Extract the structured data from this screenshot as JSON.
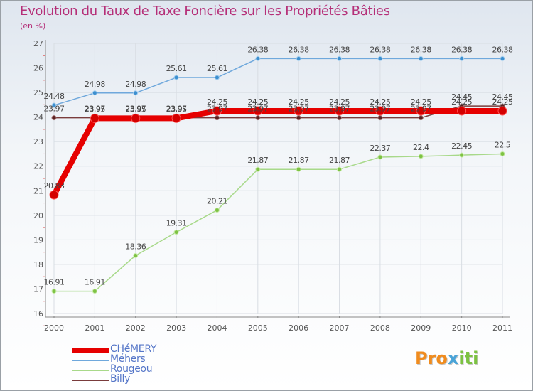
{
  "chart_data": {
    "type": "line",
    "title": "Evolution du Taux de Taxe Foncière sur les Propriétés Bâties",
    "ylabel": "(en %)",
    "xlabel": "",
    "ylim": [
      16,
      27
    ],
    "yticks": [
      "16",
      "17",
      "18",
      "19",
      "20",
      "21",
      "22",
      "23",
      "24",
      "25",
      "26",
      "27"
    ],
    "categories": [
      "2000",
      "2001",
      "2002",
      "2003",
      "2004",
      "2005",
      "2006",
      "2007",
      "2008",
      "2009",
      "2010",
      "2011"
    ],
    "grid": true,
    "legend_position": "bottom-left",
    "series": [
      {
        "name": "CHéMERY",
        "color": "#e60000",
        "values": [
          20.83,
          23.95,
          23.95,
          23.95,
          24.25,
          24.25,
          24.25,
          24.25,
          24.25,
          24.25,
          24.25,
          24.25
        ],
        "labels": [
          "20.83",
          "23.95",
          "23.95",
          "23.95",
          "24.25",
          "24.25",
          "24.25",
          "24.25",
          "24.25",
          "24.25",
          "24.25",
          "24.25"
        ]
      },
      {
        "name": "Méhers",
        "color": "#6fa8dc",
        "values": [
          24.48,
          24.98,
          24.98,
          25.61,
          25.61,
          26.38,
          26.38,
          26.38,
          26.38,
          26.38,
          26.38,
          26.38
        ],
        "labels": [
          "24.48",
          "24.98",
          "24.98",
          "25.61",
          "25.61",
          "26.38",
          "26.38",
          "26.38",
          "26.38",
          "26.38",
          "26.38",
          "26.38"
        ]
      },
      {
        "name": "Rougeou",
        "color": "#a8d98a",
        "values": [
          16.91,
          16.91,
          18.36,
          19.31,
          20.21,
          21.87,
          21.87,
          21.87,
          22.37,
          22.4,
          22.45,
          22.5
        ],
        "labels": [
          "16.91",
          "16.91",
          "18.36",
          "19.31",
          "20.21",
          "21.87",
          "21.87",
          "21.87",
          "22.37",
          "22.4",
          "22.45",
          "22.5"
        ]
      },
      {
        "name": "Billy",
        "color": "#7a3c3c",
        "values": [
          23.97,
          23.97,
          23.97,
          23.97,
          23.97,
          23.97,
          23.97,
          23.97,
          23.97,
          23.97,
          24.45,
          24.45
        ],
        "labels": [
          "23.97",
          "23.97",
          "23.97",
          "23.97",
          "23.97",
          "23.97",
          "23.97",
          "23.97",
          "23.97",
          "23.97",
          "24.45",
          "24.45"
        ]
      }
    ]
  },
  "branding": {
    "part1": "Pro",
    "part2": "x",
    "part3": "iti"
  }
}
